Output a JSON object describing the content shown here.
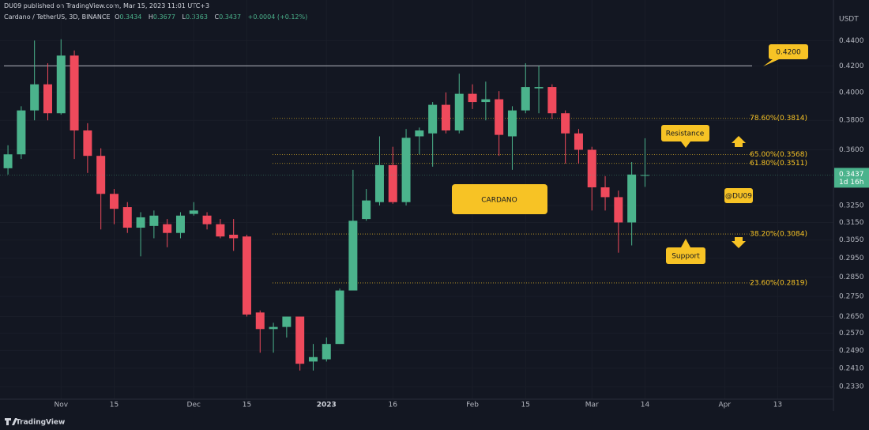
{
  "header": {
    "publisher": "DU09 published on TradingView.com, Mar 15, 2023 11:01 UTC+3",
    "symbol": "Cardano / TetherUS, 3D, BINANCE",
    "ohlc_letters": [
      "O",
      "H",
      "L",
      "C"
    ],
    "change": "+0.0004 (+0.12%)"
  },
  "chart_data": {
    "type": "candlestick",
    "open": [
      0.348,
      0.357,
      0.387,
      0.406,
      0.385,
      0.428,
      0.373,
      0.356,
      0.332,
      0.324,
      0.312,
      0.313,
      0.314,
      0.309,
      0.32,
      0.319,
      0.314,
      0.308,
      0.307,
      0.267,
      0.259,
      0.26,
      0.265,
      0.244,
      0.245,
      0.252,
      0.278,
      0.317,
      0.327,
      0.35,
      0.327,
      0.369,
      0.371,
      0.391,
      0.373,
      0.399,
      0.393,
      0.395,
      0.369,
      0.387,
      0.403,
      0.404,
      0.385,
      0.371,
      0.36,
      0.336,
      0.33,
      0.315,
      0.3434
    ],
    "high": [
      0.363,
      0.39,
      0.44,
      0.422,
      0.441,
      0.432,
      0.378,
      0.361,
      0.335,
      0.327,
      0.321,
      0.322,
      0.317,
      0.321,
      0.327,
      0.321,
      0.317,
      0.317,
      0.308,
      0.268,
      0.262,
      0.265,
      0.265,
      0.252,
      0.255,
      0.279,
      0.347,
      0.335,
      0.369,
      0.362,
      0.374,
      0.375,
      0.393,
      0.4,
      0.414,
      0.406,
      0.408,
      0.401,
      0.39,
      0.422,
      0.42,
      0.406,
      0.387,
      0.374,
      0.362,
      0.343,
      0.334,
      0.352,
      0.3677
    ],
    "low": [
      0.344,
      0.354,
      0.38,
      0.38,
      0.384,
      0.354,
      0.345,
      0.311,
      0.314,
      0.309,
      0.296,
      0.306,
      0.301,
      0.306,
      0.319,
      0.311,
      0.306,
      0.299,
      0.265,
      0.248,
      0.248,
      0.255,
      0.24,
      0.24,
      0.244,
      0.252,
      0.278,
      0.316,
      0.325,
      0.326,
      0.325,
      0.357,
      0.349,
      0.371,
      0.371,
      0.388,
      0.38,
      0.356,
      0.347,
      0.385,
      0.385,
      0.381,
      0.351,
      0.351,
      0.322,
      0.322,
      0.298,
      0.302,
      0.3363
    ],
    "close": [
      0.357,
      0.387,
      0.406,
      0.385,
      0.428,
      0.373,
      0.356,
      0.332,
      0.323,
      0.312,
      0.318,
      0.319,
      0.309,
      0.319,
      0.322,
      0.314,
      0.307,
      0.306,
      0.266,
      0.259,
      0.26,
      0.265,
      0.243,
      0.246,
      0.252,
      0.278,
      0.316,
      0.328,
      0.35,
      0.327,
      0.368,
      0.373,
      0.391,
      0.373,
      0.399,
      0.393,
      0.395,
      0.37,
      0.387,
      0.404,
      0.404,
      0.385,
      0.371,
      0.36,
      0.336,
      0.33,
      0.315,
      0.344,
      0.3437
    ],
    "up_color": "#4bb38c",
    "down_color": "#ef4a5c",
    "xlim": [
      -0.6,
      62.2
    ],
    "xticks": [
      {
        "value": 4,
        "label": "Nov"
      },
      {
        "value": 8,
        "label": "15"
      },
      {
        "value": 14,
        "label": "Dec"
      },
      {
        "value": 18,
        "label": "15"
      },
      {
        "value": 24,
        "label": "2023"
      },
      {
        "value": 29,
        "label": "16"
      },
      {
        "value": 35,
        "label": "Feb"
      },
      {
        "value": 39,
        "label": "15"
      },
      {
        "value": 44,
        "label": "Mar"
      },
      {
        "value": 48,
        "label": "14"
      },
      {
        "value": 54,
        "label": "Apr"
      },
      {
        "value": 58,
        "label": "13"
      }
    ],
    "ylim": [
      0.2277,
      0.474
    ],
    "log_scale": true,
    "grid": true,
    "yticks": [
      {
        "value": 0.44,
        "label": "0.4400"
      },
      {
        "value": 0.42,
        "label": "0.4200"
      },
      {
        "value": 0.4,
        "label": "0.4000"
      },
      {
        "value": 0.38,
        "label": "0.3800"
      },
      {
        "value": 0.36,
        "label": "0.3600"
      },
      {
        "value": 0.325,
        "label": "0.3250"
      },
      {
        "value": 0.315,
        "label": "0.3150"
      },
      {
        "value": 0.305,
        "label": "0.3050"
      },
      {
        "value": 0.295,
        "label": "0.2950"
      },
      {
        "value": 0.285,
        "label": "0.2850"
      },
      {
        "value": 0.275,
        "label": "0.2750"
      },
      {
        "value": 0.265,
        "label": "0.2650"
      },
      {
        "value": 0.257,
        "label": "0.2570"
      },
      {
        "value": 0.249,
        "label": "0.2490"
      },
      {
        "value": 0.241,
        "label": "0.2410"
      },
      {
        "value": 0.233,
        "label": "0.2330"
      }
    ],
    "unit_label": "USDT",
    "countdown": "1d 16h",
    "horizontal_line": {
      "value": 0.42,
      "label": "0.4200"
    },
    "fib_levels": [
      {
        "value": 0.3814,
        "label": "78.60%(0.3814)"
      },
      {
        "value": 0.3568,
        "label": "65.00%(0.3568)"
      },
      {
        "value": 0.3511,
        "label": "61.80%(0.3511)"
      },
      {
        "value": 0.3084,
        "label": "38.20%(0.3084)"
      },
      {
        "value": 0.2819,
        "label": "23.60%(0.2819)"
      }
    ],
    "annotations": {
      "title": "CARDANO",
      "watermark": "@DU09",
      "resistance": "Resistance",
      "support": "Support"
    }
  },
  "footer": {
    "logo": "TradingView"
  }
}
